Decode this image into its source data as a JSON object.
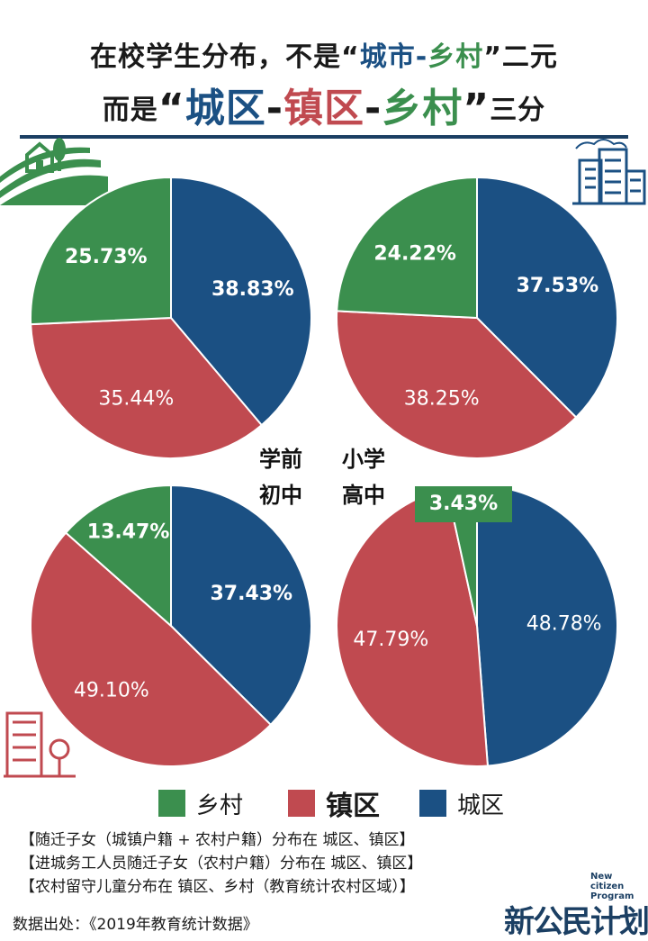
{
  "title": {
    "line1_prefix": "在校学生分布，不是“",
    "line1_chengshi": "城市",
    "line1_dash": "-",
    "line1_xiangcun": "乡村",
    "line1_suffix": "”二元",
    "line2_prefix": "而是",
    "line2_openq": "“",
    "line2_chengqu": "城区",
    "line2_dash1": "-",
    "line2_zhenqu": "镇区",
    "line2_dash2": "-",
    "line2_xiangcun": "乡村",
    "line2_closeq": "”",
    "line2_suffix": "三分"
  },
  "colors": {
    "rural": "#3b8f4e",
    "town": "#c04a50",
    "urban": "#1b5083",
    "dark": "#1b3f63"
  },
  "stage_labels": {
    "preschool": "学前",
    "primary": "小学",
    "junior": "初中",
    "senior": "高中"
  },
  "chart_data": [
    {
      "type": "pie",
      "title": "学前",
      "categories": [
        "城区",
        "镇区",
        "乡村"
      ],
      "values": [
        38.83,
        35.44,
        25.73
      ],
      "labels": [
        "38.83%",
        "35.44%",
        "25.73%"
      ]
    },
    {
      "type": "pie",
      "title": "小学",
      "categories": [
        "城区",
        "镇区",
        "乡村"
      ],
      "values": [
        37.53,
        38.25,
        24.22
      ],
      "labels": [
        "37.53%",
        "38.25%",
        "24.22%"
      ]
    },
    {
      "type": "pie",
      "title": "初中",
      "categories": [
        "城区",
        "镇区",
        "乡村"
      ],
      "values": [
        37.43,
        49.1,
        13.47
      ],
      "labels": [
        "37.43%",
        "49.10%",
        "13.47%"
      ]
    },
    {
      "type": "pie",
      "title": "高中",
      "categories": [
        "城区",
        "镇区",
        "乡村"
      ],
      "values": [
        48.78,
        47.79,
        3.43
      ],
      "labels": [
        "48.78%",
        "47.79%",
        "3.43%"
      ]
    }
  ],
  "legend": [
    {
      "label": "乡村",
      "key": "rural"
    },
    {
      "label": "镇区",
      "key": "town"
    },
    {
      "label": "城区",
      "key": "urban"
    }
  ],
  "notes": [
    "【随迁子女（城镇户籍 + 农村户籍）分布在 城区、镇区】",
    "【进城务工人员随迁子女（农村户籍）分布在 城区、镇区】",
    "【农村留守儿童分布在 镇区、乡村（教育统计农村区域）】"
  ],
  "source": "数据出处：《2019年教育统计数据》",
  "logo": {
    "en_line1": "New citizen",
    "en_line2": "Program",
    "cn": "新公民计划"
  }
}
